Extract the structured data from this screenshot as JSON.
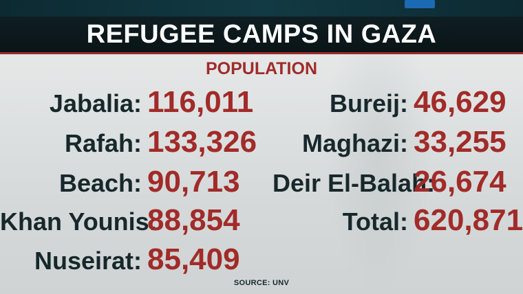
{
  "title": "REFUGEE CAMPS IN GAZA",
  "subtitle": "POPULATION",
  "source": "SOURCE: UNV",
  "left": [
    {
      "label": "Jabalia:",
      "value": "116,011"
    },
    {
      "label": "Rafah:",
      "value": "133,326"
    },
    {
      "label": "Beach:",
      "value": "90,713"
    },
    {
      "label": "Khan Younis:",
      "value": "88,854"
    },
    {
      "label": "Nuseirat:",
      "value": "85,409"
    }
  ],
  "right": [
    {
      "label": "Bureij:",
      "value": "46,629"
    },
    {
      "label": "Maghazi:",
      "value": "33,255"
    },
    {
      "label": "Deir El-Balah:",
      "value": "26,674"
    },
    {
      "label": "Total:",
      "value": "620,871"
    }
  ],
  "colors": {
    "accent": "#9e2c2a",
    "label": "#17282c",
    "title_bg": "#0f1e22"
  }
}
